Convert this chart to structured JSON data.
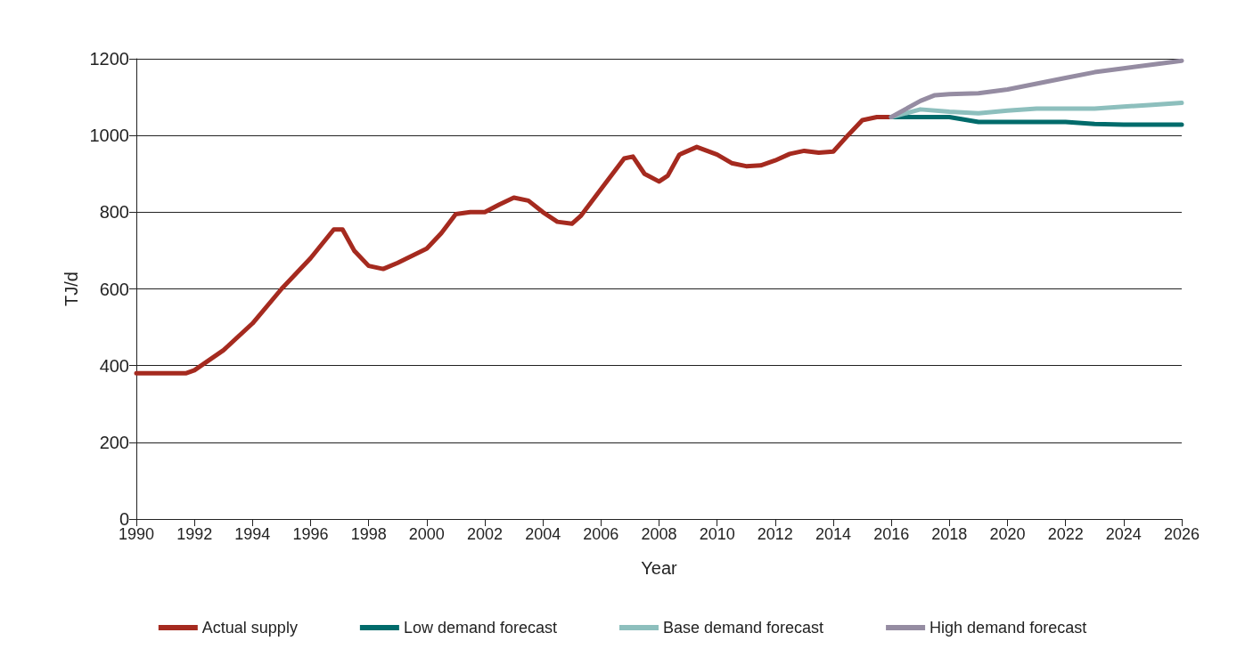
{
  "chart_data": {
    "type": "line",
    "xlabel": "Year",
    "ylabel": "TJ/d",
    "xlim": [
      1990,
      2026
    ],
    "xticks": [
      1990,
      1992,
      1994,
      1996,
      1998,
      2000,
      2002,
      2004,
      2006,
      2008,
      2010,
      2012,
      2014,
      2016,
      2018,
      2020,
      2022,
      2024,
      2026
    ],
    "ylim": [
      0,
      1200
    ],
    "yticks": [
      0,
      200,
      400,
      600,
      800,
      1000,
      1200
    ],
    "grid": "y",
    "legend": "bottom",
    "marker": "none",
    "line_style": "solid",
    "series": [
      {
        "name": "Actual supply",
        "color": "#a52a1f",
        "x": [
          1990,
          1991.7,
          1992,
          1993,
          1994,
          1995,
          1996,
          1996.8,
          1997.1,
          1997.5,
          1998,
          1998.5,
          1999,
          2000,
          2000.5,
          2001,
          2001.5,
          2002,
          2002.5,
          2003,
          2003.5,
          2004,
          2004.5,
          2005,
          2005.3,
          2006,
          2006.8,
          2007.1,
          2007.5,
          2008,
          2008.3,
          2008.7,
          2009.3,
          2010,
          2010.5,
          2011,
          2011.5,
          2012,
          2012.5,
          2013,
          2013.5,
          2014,
          2014.5,
          2015,
          2015.5,
          2016
        ],
        "values": [
          380,
          380,
          388,
          440,
          510,
          600,
          680,
          755,
          755,
          700,
          660,
          652,
          668,
          705,
          745,
          795,
          800,
          800,
          820,
          838,
          830,
          800,
          775,
          770,
          790,
          860,
          940,
          945,
          900,
          880,
          895,
          950,
          970,
          950,
          928,
          920,
          922,
          935,
          952,
          960,
          955,
          958,
          1000,
          1040,
          1048,
          1048
        ]
      },
      {
        "name": "Low demand forecast",
        "color": "#006b6b",
        "x": [
          2016,
          2017,
          2018,
          2019,
          2020,
          2021,
          2022,
          2023,
          2024,
          2025,
          2026
        ],
        "values": [
          1048,
          1048,
          1048,
          1035,
          1035,
          1035,
          1035,
          1030,
          1028,
          1028,
          1028
        ]
      },
      {
        "name": "Base demand forecast",
        "color": "#8dbfbd",
        "x": [
          2016,
          2017,
          2018,
          2019,
          2020,
          2021,
          2022,
          2023,
          2024,
          2025,
          2026
        ],
        "values": [
          1048,
          1068,
          1062,
          1058,
          1065,
          1070,
          1070,
          1070,
          1075,
          1080,
          1085
        ]
      },
      {
        "name": "High demand forecast",
        "color": "#958ca2",
        "x": [
          2016,
          2017,
          2017.5,
          2018,
          2019,
          2020,
          2021,
          2022,
          2023,
          2024,
          2025,
          2026
        ],
        "values": [
          1048,
          1090,
          1105,
          1108,
          1110,
          1120,
          1135,
          1150,
          1165,
          1175,
          1185,
          1195
        ]
      }
    ]
  }
}
